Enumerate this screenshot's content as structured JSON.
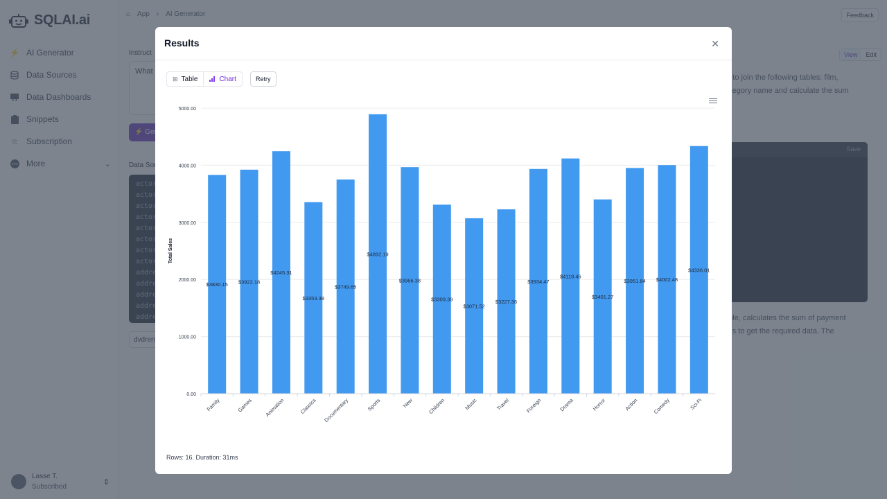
{
  "sidebar": {
    "brand": "SQLAI.ai",
    "items": [
      {
        "label": "AI Generator",
        "icon": "bolt-icon"
      },
      {
        "label": "Data Sources",
        "icon": "database-icon"
      },
      {
        "label": "Data Dashboards",
        "icon": "dashboard-icon"
      },
      {
        "label": "Snippets",
        "icon": "clipboard-icon"
      },
      {
        "label": "Subscription",
        "icon": "star-icon"
      },
      {
        "label": "More",
        "icon": "ellipsis-icon"
      }
    ],
    "user": {
      "name": "Lasse T.",
      "status": "Subscribed"
    }
  },
  "header": {
    "breadcrumb": [
      "App",
      "AI Generator"
    ],
    "feedback": "Feedback"
  },
  "background": {
    "instruction_label": "Instruct",
    "instruction_value": "What",
    "generate_label": "Gen",
    "data_source_label": "Data Sou",
    "schema_lines": [
      "actor",
      "actor",
      "actor",
      "actor",
      "actor",
      "actor",
      "actor",
      "actor",
      "addre",
      "addre",
      "addre",
      "addre",
      "addre"
    ],
    "database": "dvdren",
    "view": "View",
    "edit": "Edit",
    "explanation_top": [
      "ed to join the following tables: film,",
      "category name and calculate the sum"
    ],
    "code_save": "Save",
    "explanation_bottom": [
      "table, calculates the sum of payment",
      "bles to get the required data. The"
    ]
  },
  "modal": {
    "title": "Results",
    "tabs": [
      {
        "label": "Table",
        "icon": "table-icon"
      },
      {
        "label": "Chart",
        "icon": "bar-chart-icon",
        "active": true
      }
    ],
    "retry": "Retry",
    "footer": "Rows: 16.  Duration: 31ms"
  },
  "colors": {
    "bar": "#4299f0",
    "accent": "#6d28d9",
    "generate": "#5b21b6"
  },
  "chart_data": {
    "type": "bar",
    "title": "",
    "xlabel": "",
    "ylabel": "Total Sales",
    "ylim": [
      0,
      5000
    ],
    "yticks": [
      "0.00",
      "1000.00",
      "2000.00",
      "3000.00",
      "4000.00",
      "5000.00"
    ],
    "grid": true,
    "legend": "none",
    "categories": [
      "Family",
      "Games",
      "Animation",
      "Classics",
      "Documentary",
      "Sports",
      "New",
      "Children",
      "Music",
      "Travel",
      "Foreign",
      "Drama",
      "Horror",
      "Action",
      "Comedy",
      "Sci-Fi"
    ],
    "values": [
      3830.15,
      3922.18,
      4245.31,
      3353.38,
      3749.65,
      4892.19,
      3966.38,
      3309.39,
      3071.52,
      3227.36,
      3934.47,
      4118.46,
      3401.27,
      3951.84,
      4002.48,
      4336.01
    ],
    "data_labels": [
      "$3830.15",
      "$3922.18",
      "$4245.31",
      "$3353.38",
      "$3749.65",
      "$4892.19",
      "$3966.38",
      "$3309.39",
      "$3071.52",
      "$3227.36",
      "$3934.47",
      "$4118.46",
      "$3401.27",
      "$3951.84",
      "$4002.48",
      "$4336.01"
    ]
  }
}
